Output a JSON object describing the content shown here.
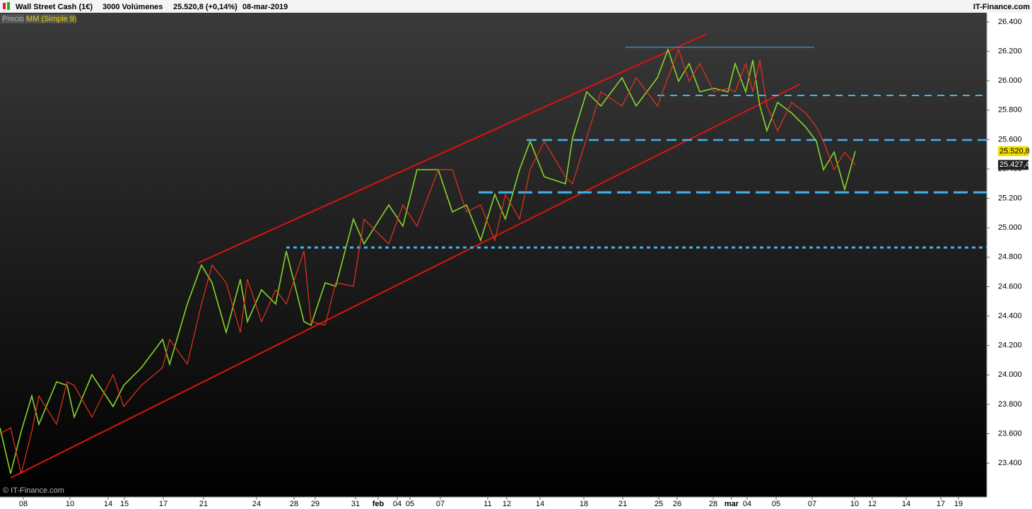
{
  "header": {
    "title": "Wall Street Cash (1€)",
    "volume": "3000 Volúmenes",
    "last": "25.520,8 (+0,14%)",
    "date": "08-mar-2019",
    "brand": "IT-Finance.com"
  },
  "legend": {
    "price": "Precio",
    "mm": "MM (Simple 9)"
  },
  "watermark": "© IT-Finance.com",
  "chart_data": {
    "type": "line",
    "x": [
      0,
      15,
      30,
      45,
      55,
      80,
      95,
      105,
      130,
      160,
      175,
      200,
      230,
      240,
      265,
      285,
      300,
      320,
      340,
      350,
      370,
      390,
      405,
      430,
      440,
      460,
      475,
      500,
      515,
      550,
      570,
      590,
      620,
      640,
      660,
      680,
      700,
      715,
      735,
      750,
      770,
      800,
      810,
      830,
      850,
      880,
      900,
      930,
      945,
      960,
      975,
      990,
      1010,
      1030,
      1040,
      1055,
      1065,
      1075,
      1085,
      1100,
      1120,
      1140,
      1155,
      1165,
      1180,
      1195,
      1210
    ],
    "series": [
      {
        "name": "Precio",
        "color": "#86d42a",
        "values": [
          23640,
          23328,
          23616,
          23857,
          23664,
          23953,
          23929,
          23713,
          24001,
          23785,
          23929,
          24049,
          24241,
          24073,
          24482,
          24746,
          24626,
          24289,
          24650,
          24362,
          24578,
          24482,
          24842,
          24362,
          24338,
          24626,
          24602,
          25059,
          24890,
          25155,
          25011,
          25395,
          25395,
          25107,
          25155,
          24914,
          25227,
          25059,
          25395,
          25588,
          25347,
          25299,
          25612,
          25924,
          25828,
          26020,
          25828,
          26020,
          26212,
          25996,
          26116,
          25924,
          25948,
          25924,
          26116,
          25924,
          26140,
          25828,
          25660,
          25852,
          25780,
          25684,
          25588,
          25395,
          25515,
          25261,
          25520.8
        ]
      },
      {
        "name": "MM (Simple 9)",
        "color": "#e8321c",
        "values": [
          23600,
          23640,
          23328,
          23616,
          23857,
          23664,
          23953,
          23929,
          23713,
          24001,
          23785,
          23929,
          24049,
          24241,
          24073,
          24482,
          24746,
          24626,
          24289,
          24650,
          24362,
          24578,
          24482,
          24842,
          24362,
          24338,
          24626,
          24602,
          25059,
          24890,
          25155,
          25011,
          25395,
          25395,
          25107,
          25155,
          24914,
          25227,
          25059,
          25395,
          25588,
          25347,
          25299,
          25612,
          25924,
          25828,
          26020,
          25828,
          26020,
          26212,
          25996,
          26116,
          25924,
          25948,
          25924,
          26116,
          25924,
          26140,
          25828,
          25660,
          25852,
          25780,
          25684,
          25588,
          25395,
          25515,
          25427.4
        ]
      }
    ],
    "price_tag": {
      "value": 25520.8,
      "label": "25.520,8"
    },
    "mm_tag": {
      "value": 25427.4,
      "label": "25.427,4"
    },
    "levels": [
      24866,
      25241,
      25597,
      25900,
      26227
    ],
    "xlim": [
      0,
      1396
    ],
    "ylim": [
      23170,
      26462
    ],
    "yticks": [
      {
        "value": 23400,
        "label": "23.400"
      },
      {
        "value": 23600,
        "label": "23.600"
      },
      {
        "value": 23800,
        "label": "23.800"
      },
      {
        "value": 24000,
        "label": "24.000"
      },
      {
        "value": 24200,
        "label": "24.200"
      },
      {
        "value": 24400,
        "label": "24.400"
      },
      {
        "value": 24600,
        "label": "24.600"
      },
      {
        "value": 24800,
        "label": "24.800"
      },
      {
        "value": 25000,
        "label": "25.000"
      },
      {
        "value": 25200,
        "label": "25.200"
      },
      {
        "value": 25400,
        "label": "25.400"
      },
      {
        "value": 25600,
        "label": "25.600"
      },
      {
        "value": 25800,
        "label": "25.800"
      },
      {
        "value": 26000,
        "label": "26.000"
      },
      {
        "value": 26200,
        "label": "26.200"
      },
      {
        "value": 26400,
        "label": "26.400"
      }
    ],
    "xticks": [
      {
        "value": 33,
        "label": "08"
      },
      {
        "value": 99,
        "label": "10"
      },
      {
        "value": 153,
        "label": "14"
      },
      {
        "value": 176,
        "label": "15"
      },
      {
        "value": 231,
        "label": "17"
      },
      {
        "value": 288,
        "label": "21"
      },
      {
        "value": 363,
        "label": "24"
      },
      {
        "value": 416,
        "label": "28"
      },
      {
        "value": 446,
        "label": "29"
      },
      {
        "value": 503,
        "label": "31"
      },
      {
        "value": 535,
        "label": "feb"
      },
      {
        "value": 562,
        "label": "04"
      },
      {
        "value": 580,
        "label": "05"
      },
      {
        "value": 623,
        "label": "07"
      },
      {
        "value": 690,
        "label": "11"
      },
      {
        "value": 717,
        "label": "12"
      },
      {
        "value": 764,
        "label": "14"
      },
      {
        "value": 826,
        "label": "18"
      },
      {
        "value": 881,
        "label": "21"
      },
      {
        "value": 932,
        "label": "25"
      },
      {
        "value": 958,
        "label": "26"
      },
      {
        "value": 1009,
        "label": "28"
      },
      {
        "value": 1035,
        "label": "mar"
      },
      {
        "value": 1057,
        "label": "04"
      },
      {
        "value": 1098,
        "label": "05"
      },
      {
        "value": 1149,
        "label": "07"
      },
      {
        "value": 1209,
        "label": "10"
      },
      {
        "value": 1234,
        "label": "12"
      },
      {
        "value": 1282,
        "label": "14"
      },
      {
        "value": 1331,
        "label": "17"
      },
      {
        "value": 1356,
        "label": "19"
      }
    ]
  }
}
